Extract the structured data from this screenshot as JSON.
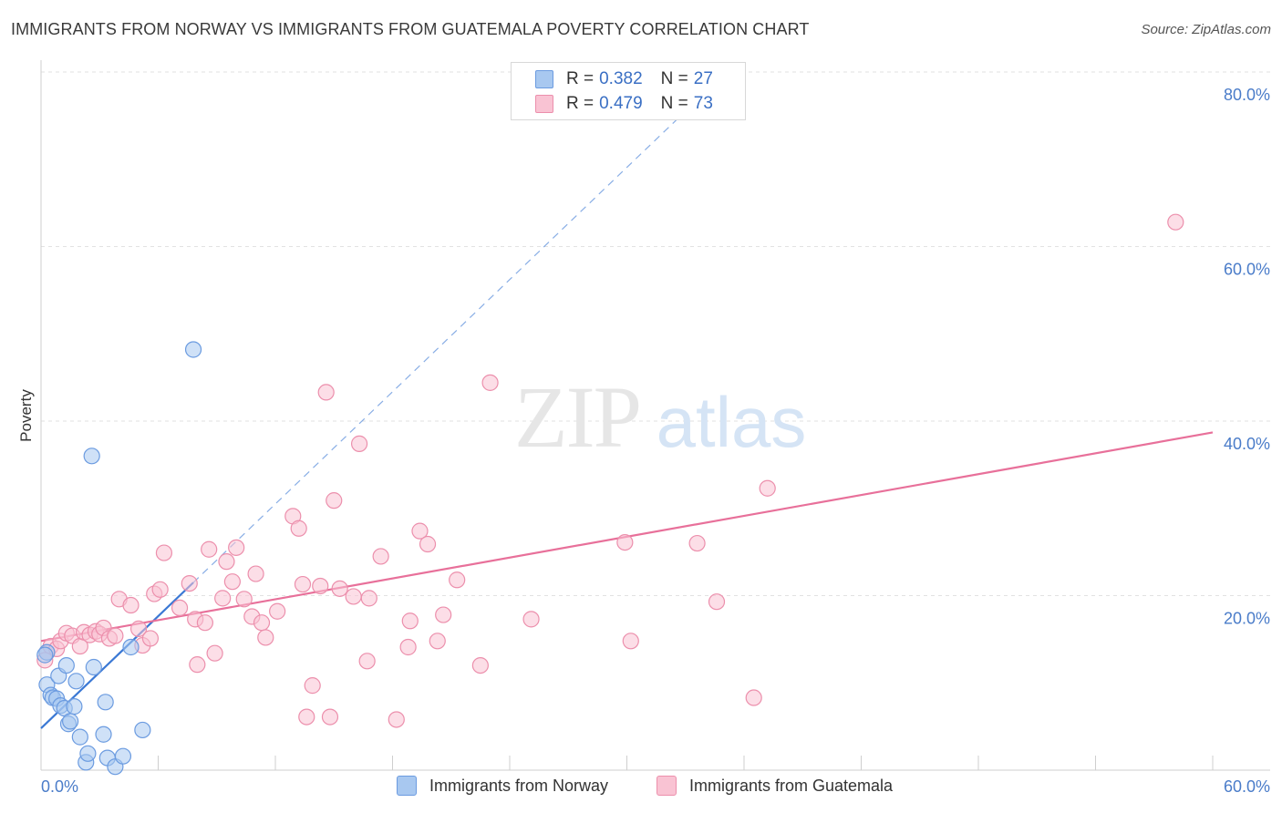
{
  "title": "IMMIGRANTS FROM NORWAY VS IMMIGRANTS FROM GUATEMALA POVERTY CORRELATION CHART",
  "source": "Source: ZipAtlas.com",
  "watermark": {
    "zip": "ZIP",
    "atlas": "atlas"
  },
  "legend": {
    "rows": [
      {
        "r_label": "R =",
        "r_value": "0.382",
        "n_label": "N =",
        "n_value": "27",
        "color": "#a8c8f0",
        "stroke": "#6b9be0"
      },
      {
        "r_label": "R =",
        "r_value": "0.479",
        "n_label": "N =",
        "n_value": "73",
        "color": "#f9c3d3",
        "stroke": "#ec8fac"
      }
    ]
  },
  "bottom_legend": {
    "norway": "Immigrants from Norway",
    "guatemala": "Immigrants from Guatemala"
  },
  "chart_data": {
    "type": "scatter",
    "ylabel": "Poverty",
    "xlim": [
      0,
      60
    ],
    "ylim": [
      0,
      80
    ],
    "y_ticks": [
      {
        "value": 20,
        "label": "20.0%"
      },
      {
        "value": 40,
        "label": "40.0%"
      },
      {
        "value": 60,
        "label": "60.0%"
      },
      {
        "value": 80,
        "label": "80.0%"
      }
    ],
    "x_tick_labels": [
      {
        "value": 0,
        "label": "0.0%"
      },
      {
        "value": 60,
        "label": "60.0%"
      }
    ],
    "x_minor_ticks": [
      6,
      12,
      18,
      24,
      30,
      36,
      42,
      48,
      54,
      60
    ],
    "grid": true,
    "series": [
      {
        "name": "Immigrants from Norway",
        "color": "#a8c8f0",
        "stroke": "#6b9be0",
        "line_color": "#3a78d4",
        "trend": {
          "x0": 0,
          "y0": 4.8,
          "x1": 7.8,
          "y1": 21.5,
          "dash_to_x": 33,
          "dash_to_y": 75.5
        },
        "points": [
          [
            0.3,
            13.5
          ],
          [
            0.3,
            9.8
          ],
          [
            0.5,
            8.6
          ],
          [
            0.6,
            8.3
          ],
          [
            0.8,
            8.2
          ],
          [
            0.9,
            10.8
          ],
          [
            1.0,
            7.4
          ],
          [
            1.2,
            7.1
          ],
          [
            1.3,
            12.0
          ],
          [
            1.4,
            5.3
          ],
          [
            1.5,
            5.6
          ],
          [
            1.7,
            7.3
          ],
          [
            1.8,
            10.2
          ],
          [
            2.0,
            3.8
          ],
          [
            2.3,
            0.9
          ],
          [
            2.4,
            1.9
          ],
          [
            2.6,
            36.0
          ],
          [
            2.7,
            11.8
          ],
          [
            3.3,
            7.8
          ],
          [
            3.2,
            4.1
          ],
          [
            3.4,
            1.4
          ],
          [
            3.8,
            0.4
          ],
          [
            4.2,
            1.6
          ],
          [
            4.6,
            14.1
          ],
          [
            5.2,
            4.6
          ],
          [
            7.8,
            48.2
          ],
          [
            0.2,
            13.2
          ]
        ]
      },
      {
        "name": "Immigrants from Guatemala",
        "color": "#f9c3d3",
        "stroke": "#ec8fac",
        "line_color": "#e8709a",
        "trend": {
          "x0": 0,
          "y0": 14.8,
          "x1": 60,
          "y1": 38.7
        },
        "points": [
          [
            0.3,
            13.5
          ],
          [
            0.5,
            14.2
          ],
          [
            0.8,
            13.9
          ],
          [
            1.0,
            14.8
          ],
          [
            1.3,
            15.7
          ],
          [
            1.6,
            15.4
          ],
          [
            2.0,
            14.2
          ],
          [
            2.2,
            15.8
          ],
          [
            2.5,
            15.5
          ],
          [
            2.8,
            15.9
          ],
          [
            3.0,
            15.6
          ],
          [
            3.2,
            16.3
          ],
          [
            3.5,
            15.1
          ],
          [
            3.8,
            15.4
          ],
          [
            4.0,
            19.6
          ],
          [
            4.6,
            18.9
          ],
          [
            5.0,
            16.2
          ],
          [
            5.2,
            14.3
          ],
          [
            5.6,
            15.1
          ],
          [
            5.8,
            20.2
          ],
          [
            6.1,
            20.7
          ],
          [
            6.3,
            24.9
          ],
          [
            7.1,
            18.6
          ],
          [
            7.6,
            21.4
          ],
          [
            7.9,
            17.3
          ],
          [
            8.0,
            12.1
          ],
          [
            8.4,
            16.9
          ],
          [
            8.6,
            25.3
          ],
          [
            8.9,
            13.4
          ],
          [
            9.3,
            19.7
          ],
          [
            9.5,
            23.9
          ],
          [
            9.8,
            21.6
          ],
          [
            10.0,
            25.5
          ],
          [
            10.4,
            19.6
          ],
          [
            10.8,
            17.6
          ],
          [
            11.0,
            22.5
          ],
          [
            11.3,
            16.9
          ],
          [
            11.5,
            15.2
          ],
          [
            12.1,
            18.2
          ],
          [
            12.9,
            29.1
          ],
          [
            13.2,
            27.7
          ],
          [
            13.4,
            21.3
          ],
          [
            13.6,
            6.1
          ],
          [
            13.9,
            9.7
          ],
          [
            14.3,
            21.1
          ],
          [
            14.6,
            43.3
          ],
          [
            14.8,
            6.1
          ],
          [
            15.0,
            30.9
          ],
          [
            15.3,
            20.8
          ],
          [
            16.0,
            19.9
          ],
          [
            16.3,
            37.4
          ],
          [
            16.7,
            12.5
          ],
          [
            16.8,
            19.7
          ],
          [
            17.4,
            24.5
          ],
          [
            18.2,
            5.8
          ],
          [
            18.8,
            14.1
          ],
          [
            18.9,
            17.1
          ],
          [
            19.4,
            27.4
          ],
          [
            19.8,
            25.9
          ],
          [
            20.3,
            14.8
          ],
          [
            20.6,
            17.8
          ],
          [
            21.3,
            21.8
          ],
          [
            22.5,
            12.0
          ],
          [
            23.0,
            44.4
          ],
          [
            25.1,
            17.3
          ],
          [
            29.9,
            26.1
          ],
          [
            30.2,
            14.8
          ],
          [
            33.6,
            26.0
          ],
          [
            34.6,
            19.3
          ],
          [
            36.5,
            8.3
          ],
          [
            37.2,
            32.3
          ],
          [
            58.1,
            62.8
          ],
          [
            0.2,
            12.6
          ]
        ]
      }
    ]
  }
}
